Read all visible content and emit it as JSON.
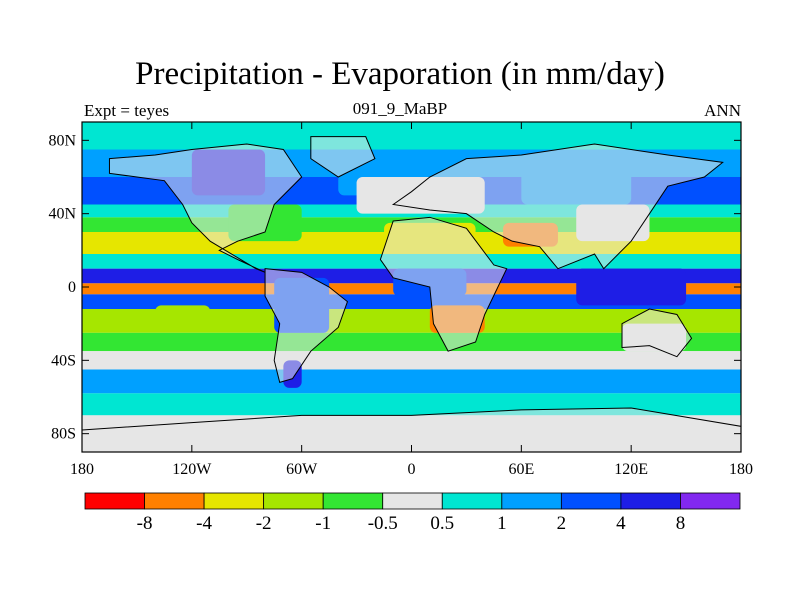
{
  "chart_data": {
    "type": "heatmap",
    "title": "Precipitation - Evaporation (in mm/day)",
    "subtitle_left": "Expt = teyes",
    "subtitle_center": "091_9_MaBP",
    "subtitle_right": "ANN",
    "x_range": [
      -180,
      180
    ],
    "y_range": [
      -90,
      90
    ],
    "x_ticks": [
      {
        "value": -180,
        "label": "180"
      },
      {
        "value": -120,
        "label": "120W"
      },
      {
        "value": -60,
        "label": "60W"
      },
      {
        "value": 0,
        "label": "0"
      },
      {
        "value": 60,
        "label": "60E"
      },
      {
        "value": 120,
        "label": "120E"
      },
      {
        "value": 180,
        "label": "180"
      }
    ],
    "y_ticks": [
      {
        "value": 80,
        "label": "80N"
      },
      {
        "value": 40,
        "label": "40N"
      },
      {
        "value": 0,
        "label": "0"
      },
      {
        "value": -40,
        "label": "40S"
      },
      {
        "value": -80,
        "label": "80S"
      }
    ],
    "colorbar": {
      "levels": [
        "-8",
        "-4",
        "-2",
        "-1",
        "-0.5",
        "0.5",
        "1",
        "2",
        "4",
        "8"
      ],
      "colors": [
        "#ff0000",
        "#ff8000",
        "#e6e600",
        "#a6e600",
        "#33e633",
        "#e6e6e6",
        "#00e6d2",
        "#00a0ff",
        "#0050ff",
        "#1e1ee6",
        "#8228f0"
      ]
    },
    "bands": [
      {
        "lat_from": 90,
        "lat_to": 75,
        "level": 6
      },
      {
        "lat_from": 75,
        "lat_to": 60,
        "level": 7
      },
      {
        "lat_from": 60,
        "lat_to": 45,
        "level": 8
      },
      {
        "lat_from": 45,
        "lat_to": 38,
        "level": 6
      },
      {
        "lat_from": 38,
        "lat_to": 30,
        "level": 4
      },
      {
        "lat_from": 30,
        "lat_to": 18,
        "level": 2
      },
      {
        "lat_from": 18,
        "lat_to": 10,
        "level": 6
      },
      {
        "lat_from": 10,
        "lat_to": 2,
        "level": 9
      },
      {
        "lat_from": 2,
        "lat_to": -4,
        "level": 1
      },
      {
        "lat_from": -4,
        "lat_to": -12,
        "level": 8
      },
      {
        "lat_from": -12,
        "lat_to": -25,
        "level": 3
      },
      {
        "lat_from": -25,
        "lat_to": -35,
        "level": 4
      },
      {
        "lat_from": -35,
        "lat_to": -45,
        "level": 5
      },
      {
        "lat_from": -45,
        "lat_to": -58,
        "level": 7
      },
      {
        "lat_from": -58,
        "lat_to": -70,
        "level": 6
      },
      {
        "lat_from": -70,
        "lat_to": -90,
        "level": 5
      }
    ],
    "patches": [
      {
        "lon1": -120,
        "lon2": -80,
        "lat1": 75,
        "lat2": 50,
        "level": 9
      },
      {
        "lon1": -100,
        "lon2": -60,
        "lat1": 45,
        "lat2": 25,
        "level": 4
      },
      {
        "lon1": -40,
        "lon2": -10,
        "lat1": 70,
        "lat2": 50,
        "level": 7
      },
      {
        "lon1": -30,
        "lon2": 40,
        "lat1": 60,
        "lat2": 40,
        "level": 5
      },
      {
        "lon1": -15,
        "lon2": 35,
        "lat1": 35,
        "lat2": 20,
        "level": 2
      },
      {
        "lon1": 50,
        "lon2": 80,
        "lat1": 35,
        "lat2": 22,
        "level": 1
      },
      {
        "lon1": 90,
        "lon2": 130,
        "lat1": 45,
        "lat2": 25,
        "level": 5
      },
      {
        "lon1": 60,
        "lon2": 120,
        "lat1": 70,
        "lat2": 45,
        "level": 7
      },
      {
        "lon1": -75,
        "lon2": -45,
        "lat1": 5,
        "lat2": -25,
        "level": 8
      },
      {
        "lon1": -10,
        "lon2": 30,
        "lat1": 10,
        "lat2": -5,
        "level": 8
      },
      {
        "lon1": 10,
        "lon2": 40,
        "lat1": -10,
        "lat2": -25,
        "level": 1
      },
      {
        "lon1": 90,
        "lon2": 150,
        "lat1": 10,
        "lat2": -10,
        "level": 9
      },
      {
        "lon1": 115,
        "lon2": 150,
        "lat1": -20,
        "lat2": -35,
        "level": 5
      },
      {
        "lon1": -70,
        "lon2": -60,
        "lat1": -40,
        "lat2": -55,
        "level": 9
      },
      {
        "lon1": -140,
        "lon2": -110,
        "lat1": -10,
        "lat2": -20,
        "level": 3
      }
    ]
  }
}
